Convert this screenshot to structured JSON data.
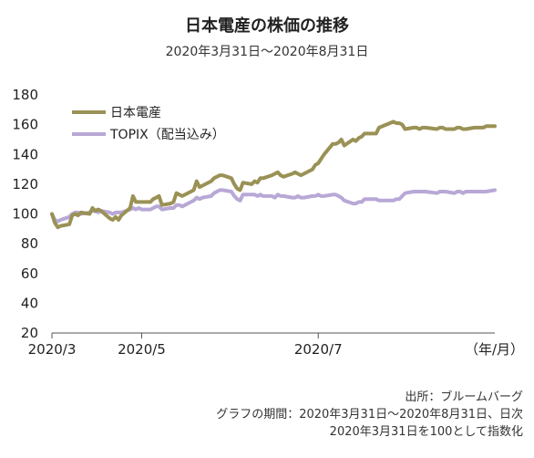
{
  "title": "日本電産の株価の推移",
  "subtitle": "2020年3月31日～2020年8月31日",
  "chart_data": {
    "type": "line",
    "ylim": [
      20,
      180
    ],
    "yticks": [
      20,
      40,
      60,
      80,
      100,
      120,
      140,
      160,
      180
    ],
    "xlim": [
      "2020-03-31",
      "2020-08-31"
    ],
    "xticks": [
      {
        "label": "2020/3",
        "date": "2020-03-31"
      },
      {
        "label": "2020/5",
        "date": "2020-05-01"
      },
      {
        "label": "2020/7",
        "date": "2020-07-01"
      }
    ],
    "unit_label": "（年/月）",
    "grid": false,
    "legend": "top-left",
    "series": [
      {
        "name": "日本電産",
        "color": "#9a9155",
        "points": [
          [
            "2020-03-31",
            100
          ],
          [
            "2020-04-01",
            94
          ],
          [
            "2020-04-02",
            91
          ],
          [
            "2020-04-03",
            92
          ],
          [
            "2020-04-06",
            93
          ],
          [
            "2020-04-07",
            99
          ],
          [
            "2020-04-08",
            100
          ],
          [
            "2020-04-09",
            99
          ],
          [
            "2020-04-10",
            101
          ],
          [
            "2020-04-13",
            100
          ],
          [
            "2020-04-14",
            104
          ],
          [
            "2020-04-15",
            102
          ],
          [
            "2020-04-16",
            103
          ],
          [
            "2020-04-17",
            102
          ],
          [
            "2020-04-20",
            97
          ],
          [
            "2020-04-21",
            96
          ],
          [
            "2020-04-22",
            98
          ],
          [
            "2020-04-23",
            96
          ],
          [
            "2020-04-24",
            99
          ],
          [
            "2020-04-27",
            104
          ],
          [
            "2020-04-28",
            112
          ],
          [
            "2020-04-29",
            108
          ],
          [
            "2020-04-30",
            108
          ],
          [
            "2020-05-01",
            108
          ],
          [
            "2020-05-04",
            108
          ],
          [
            "2020-05-05",
            110
          ],
          [
            "2020-05-06",
            111
          ],
          [
            "2020-05-07",
            112
          ],
          [
            "2020-05-08",
            106
          ],
          [
            "2020-05-11",
            107
          ],
          [
            "2020-05-12",
            108
          ],
          [
            "2020-05-13",
            114
          ],
          [
            "2020-05-14",
            113
          ],
          [
            "2020-05-15",
            112
          ],
          [
            "2020-05-18",
            115
          ],
          [
            "2020-05-19",
            116
          ],
          [
            "2020-05-20",
            122
          ],
          [
            "2020-05-21",
            118
          ],
          [
            "2020-05-22",
            119
          ],
          [
            "2020-05-25",
            122
          ],
          [
            "2020-05-26",
            124
          ],
          [
            "2020-05-27",
            125
          ],
          [
            "2020-05-28",
            126
          ],
          [
            "2020-05-29",
            126
          ],
          [
            "2020-06-01",
            124
          ],
          [
            "2020-06-02",
            120
          ],
          [
            "2020-06-03",
            117
          ],
          [
            "2020-06-04",
            116
          ],
          [
            "2020-06-05",
            121
          ],
          [
            "2020-06-08",
            120
          ],
          [
            "2020-06-09",
            122
          ],
          [
            "2020-06-10",
            121
          ],
          [
            "2020-06-11",
            124
          ],
          [
            "2020-06-12",
            124
          ],
          [
            "2020-06-15",
            126
          ],
          [
            "2020-06-16",
            127
          ],
          [
            "2020-06-17",
            128
          ],
          [
            "2020-06-18",
            126
          ],
          [
            "2020-06-19",
            125
          ],
          [
            "2020-06-22",
            127
          ],
          [
            "2020-06-23",
            128
          ],
          [
            "2020-06-24",
            127
          ],
          [
            "2020-06-25",
            126
          ],
          [
            "2020-06-26",
            127
          ],
          [
            "2020-06-29",
            130
          ],
          [
            "2020-06-30",
            133
          ],
          [
            "2020-07-01",
            134
          ],
          [
            "2020-07-02",
            137
          ],
          [
            "2020-07-03",
            140
          ],
          [
            "2020-07-06",
            147
          ],
          [
            "2020-07-07",
            147
          ],
          [
            "2020-07-08",
            148
          ],
          [
            "2020-07-09",
            150
          ],
          [
            "2020-07-10",
            146
          ],
          [
            "2020-07-13",
            150
          ],
          [
            "2020-07-14",
            149
          ],
          [
            "2020-07-15",
            151
          ],
          [
            "2020-07-16",
            152
          ],
          [
            "2020-07-17",
            154
          ],
          [
            "2020-07-20",
            154
          ],
          [
            "2020-07-21",
            154
          ],
          [
            "2020-07-22",
            158
          ],
          [
            "2020-07-27",
            162
          ],
          [
            "2020-07-28",
            161
          ],
          [
            "2020-07-29",
            161
          ],
          [
            "2020-07-30",
            160
          ],
          [
            "2020-07-31",
            157
          ],
          [
            "2020-08-03",
            158
          ],
          [
            "2020-08-04",
            158
          ],
          [
            "2020-08-05",
            157
          ],
          [
            "2020-08-06",
            158
          ],
          [
            "2020-08-07",
            158
          ],
          [
            "2020-08-11",
            157
          ],
          [
            "2020-08-12",
            158
          ],
          [
            "2020-08-13",
            158
          ],
          [
            "2020-08-14",
            157
          ],
          [
            "2020-08-17",
            157
          ],
          [
            "2020-08-18",
            158
          ],
          [
            "2020-08-19",
            158
          ],
          [
            "2020-08-20",
            157
          ],
          [
            "2020-08-21",
            157
          ],
          [
            "2020-08-24",
            158
          ],
          [
            "2020-08-25",
            158
          ],
          [
            "2020-08-26",
            158
          ],
          [
            "2020-08-27",
            158
          ],
          [
            "2020-08-28",
            159
          ],
          [
            "2020-08-31",
            159
          ]
        ]
      },
      {
        "name": "TOPIX（配当込み）",
        "color": "#b8a8d6",
        "points": [
          [
            "2020-03-31",
            100
          ],
          [
            "2020-04-01",
            96
          ],
          [
            "2020-04-02",
            95
          ],
          [
            "2020-04-03",
            96
          ],
          [
            "2020-04-06",
            98
          ],
          [
            "2020-04-07",
            100
          ],
          [
            "2020-04-08",
            101
          ],
          [
            "2020-04-09",
            101
          ],
          [
            "2020-04-10",
            100
          ],
          [
            "2020-04-13",
            101
          ],
          [
            "2020-04-14",
            102
          ],
          [
            "2020-04-15",
            102
          ],
          [
            "2020-04-16",
            101
          ],
          [
            "2020-04-17",
            102
          ],
          [
            "2020-04-20",
            101
          ],
          [
            "2020-04-21",
            100
          ],
          [
            "2020-04-22",
            101
          ],
          [
            "2020-04-23",
            101
          ],
          [
            "2020-04-24",
            101
          ],
          [
            "2020-04-27",
            103
          ],
          [
            "2020-04-28",
            104
          ],
          [
            "2020-04-29",
            103
          ],
          [
            "2020-04-30",
            104
          ],
          [
            "2020-05-01",
            103
          ],
          [
            "2020-05-04",
            103
          ],
          [
            "2020-05-05",
            104
          ],
          [
            "2020-05-06",
            105
          ],
          [
            "2020-05-07",
            105
          ],
          [
            "2020-05-08",
            103
          ],
          [
            "2020-05-11",
            104
          ],
          [
            "2020-05-12",
            104
          ],
          [
            "2020-05-13",
            106
          ],
          [
            "2020-05-14",
            106
          ],
          [
            "2020-05-15",
            105
          ],
          [
            "2020-05-18",
            108
          ],
          [
            "2020-05-19",
            109
          ],
          [
            "2020-05-20",
            111
          ],
          [
            "2020-05-21",
            110
          ],
          [
            "2020-05-22",
            111
          ],
          [
            "2020-05-25",
            112
          ],
          [
            "2020-05-26",
            114
          ],
          [
            "2020-05-27",
            115
          ],
          [
            "2020-05-28",
            116
          ],
          [
            "2020-05-29",
            116
          ],
          [
            "2020-06-01",
            115
          ],
          [
            "2020-06-02",
            112
          ],
          [
            "2020-06-03",
            110
          ],
          [
            "2020-06-04",
            109
          ],
          [
            "2020-06-05",
            113
          ],
          [
            "2020-06-08",
            113
          ],
          [
            "2020-06-09",
            113
          ],
          [
            "2020-06-10",
            112
          ],
          [
            "2020-06-11",
            113
          ],
          [
            "2020-06-12",
            112
          ],
          [
            "2020-06-15",
            112
          ],
          [
            "2020-06-16",
            111
          ],
          [
            "2020-06-17",
            113
          ],
          [
            "2020-06-18",
            112
          ],
          [
            "2020-06-19",
            112
          ],
          [
            "2020-06-22",
            111
          ],
          [
            "2020-06-23",
            111
          ],
          [
            "2020-06-24",
            112
          ],
          [
            "2020-06-25",
            111
          ],
          [
            "2020-06-26",
            111
          ],
          [
            "2020-06-29",
            112
          ],
          [
            "2020-06-30",
            112
          ],
          [
            "2020-07-01",
            113
          ],
          [
            "2020-07-02",
            112
          ],
          [
            "2020-07-03",
            112
          ],
          [
            "2020-07-06",
            113
          ],
          [
            "2020-07-07",
            113
          ],
          [
            "2020-07-08",
            112
          ],
          [
            "2020-07-09",
            111
          ],
          [
            "2020-07-10",
            109
          ],
          [
            "2020-07-13",
            107
          ],
          [
            "2020-07-14",
            107
          ],
          [
            "2020-07-15",
            108
          ],
          [
            "2020-07-16",
            108
          ],
          [
            "2020-07-17",
            110
          ],
          [
            "2020-07-20",
            110
          ],
          [
            "2020-07-21",
            110
          ],
          [
            "2020-07-22",
            109
          ],
          [
            "2020-07-27",
            109
          ],
          [
            "2020-07-28",
            110
          ],
          [
            "2020-07-29",
            110
          ],
          [
            "2020-07-30",
            112
          ],
          [
            "2020-07-31",
            114
          ],
          [
            "2020-08-03",
            115
          ],
          [
            "2020-08-04",
            115
          ],
          [
            "2020-08-05",
            115
          ],
          [
            "2020-08-06",
            115
          ],
          [
            "2020-08-07",
            115
          ],
          [
            "2020-08-11",
            114
          ],
          [
            "2020-08-12",
            115
          ],
          [
            "2020-08-13",
            115
          ],
          [
            "2020-08-14",
            115
          ],
          [
            "2020-08-17",
            114
          ],
          [
            "2020-08-18",
            115
          ],
          [
            "2020-08-19",
            115
          ],
          [
            "2020-08-20",
            114
          ],
          [
            "2020-08-21",
            115
          ],
          [
            "2020-08-24",
            115
          ],
          [
            "2020-08-25",
            115
          ],
          [
            "2020-08-26",
            115
          ],
          [
            "2020-08-27",
            115
          ],
          [
            "2020-08-28",
            115
          ],
          [
            "2020-08-31",
            116
          ]
        ]
      }
    ]
  },
  "source": {
    "line1": "出所：ブルームバーグ",
    "line2": "グラフの期間：2020年3月31日～2020年8月31日、日次",
    "line3": "2020年3月31日を100として指数化"
  }
}
